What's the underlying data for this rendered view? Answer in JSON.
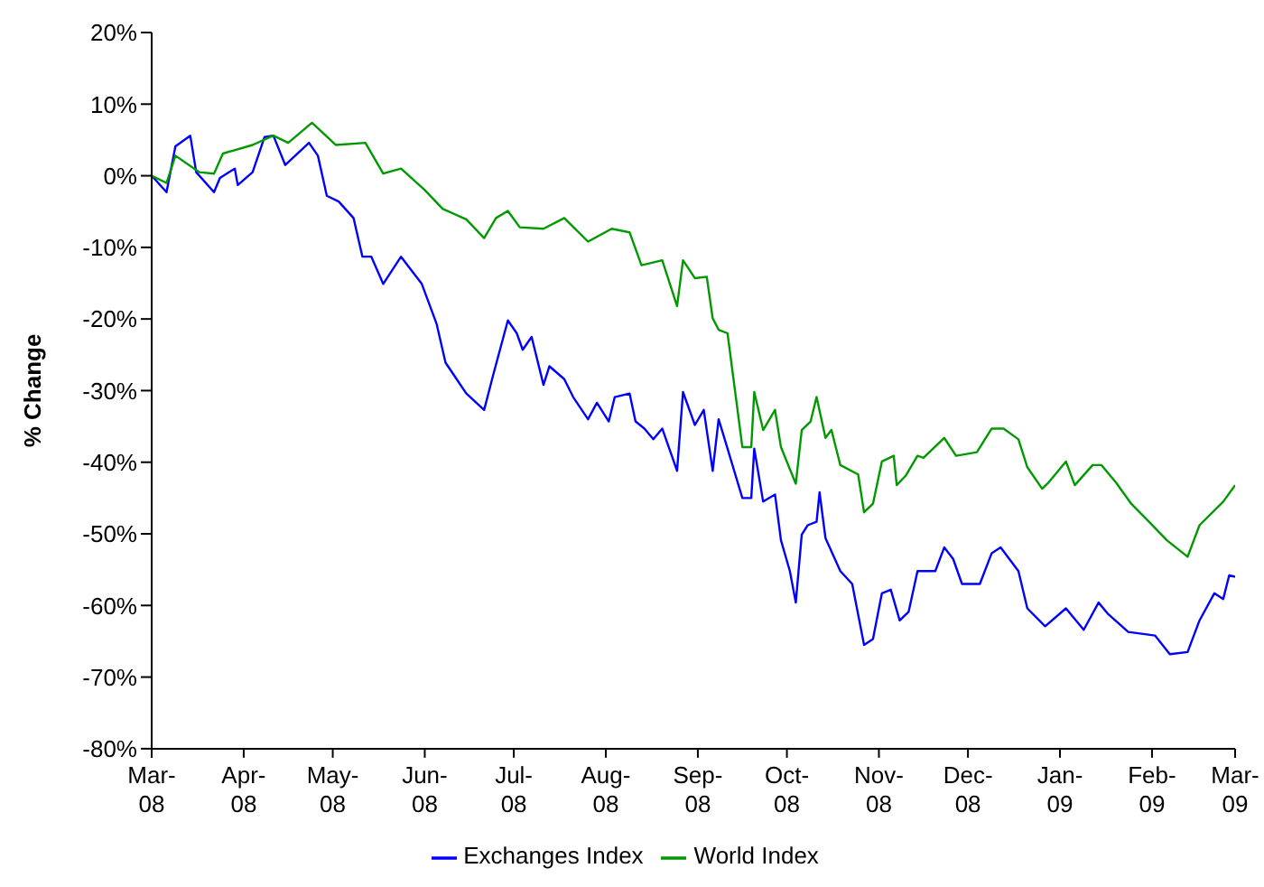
{
  "chart_data": {
    "type": "line",
    "ylabel": "% Change",
    "ylim": [
      -80,
      20
    ],
    "yticks": [
      {
        "value": 20,
        "label": "20%"
      },
      {
        "value": 10,
        "label": "10%"
      },
      {
        "value": 0,
        "label": "0%"
      },
      {
        "value": -10,
        "label": "-10%"
      },
      {
        "value": -20,
        "label": "-20%"
      },
      {
        "value": -30,
        "label": "-30%"
      },
      {
        "value": -40,
        "label": "-40%"
      },
      {
        "value": -50,
        "label": "-50%"
      },
      {
        "value": -60,
        "label": "-60%"
      },
      {
        "value": -70,
        "label": "-70%"
      },
      {
        "value": -80,
        "label": "-80%"
      }
    ],
    "xlim": [
      "2008-03-01",
      "2009-03-01"
    ],
    "xticks": [
      {
        "value": "2008-03-01",
        "label": "Mar-08"
      },
      {
        "value": "2008-04-01",
        "label": "Apr-08"
      },
      {
        "value": "2008-05-01",
        "label": "May-08"
      },
      {
        "value": "2008-06-01",
        "label": "Jun-08"
      },
      {
        "value": "2008-07-01",
        "label": "Jul-08"
      },
      {
        "value": "2008-08-01",
        "label": "Aug-08"
      },
      {
        "value": "2008-09-01",
        "label": "Sep-08"
      },
      {
        "value": "2008-10-01",
        "label": "Oct-08"
      },
      {
        "value": "2008-11-01",
        "label": "Nov-08"
      },
      {
        "value": "2008-12-01",
        "label": "Dec-08"
      },
      {
        "value": "2009-01-01",
        "label": "Jan-09"
      },
      {
        "value": "2009-02-01",
        "label": "Feb-09"
      },
      {
        "value": "2009-03-01",
        "label": "Mar-09"
      }
    ],
    "grid": false,
    "legend": "bottom",
    "marker": "none",
    "line_style": "solid",
    "series": [
      {
        "name": "Exchanges Index",
        "color": "#0000ff",
        "x": [
          "2008-03-01",
          "2008-03-06",
          "2008-03-09",
          "2008-03-14",
          "2008-03-16",
          "2008-03-22",
          "2008-03-24",
          "2008-03-29",
          "2008-03-30",
          "2008-04-04",
          "2008-04-08",
          "2008-04-11",
          "2008-04-15",
          "2008-04-23",
          "2008-04-26",
          "2008-04-29",
          "2008-05-03",
          "2008-05-08",
          "2008-05-11",
          "2008-05-14",
          "2008-05-18",
          "2008-05-24",
          "2008-05-31",
          "2008-06-05",
          "2008-06-08",
          "2008-06-15",
          "2008-06-21",
          "2008-06-24",
          "2008-06-29",
          "2008-07-02",
          "2008-07-04",
          "2008-07-07",
          "2008-07-11",
          "2008-07-13",
          "2008-07-18",
          "2008-07-21",
          "2008-07-26",
          "2008-07-29",
          "2008-08-02",
          "2008-08-04",
          "2008-08-09",
          "2008-08-11",
          "2008-08-14",
          "2008-08-17",
          "2008-08-20",
          "2008-08-25",
          "2008-08-27",
          "2008-08-31",
          "2008-09-03",
          "2008-09-06",
          "2008-09-08",
          "2008-09-11",
          "2008-09-16",
          "2008-09-19",
          "2008-09-20",
          "2008-09-23",
          "2008-09-27",
          "2008-09-29",
          "2008-10-02",
          "2008-10-04",
          "2008-10-06",
          "2008-10-08",
          "2008-10-11",
          "2008-10-12",
          "2008-10-14",
          "2008-10-19",
          "2008-10-23",
          "2008-10-27",
          "2008-10-30",
          "2008-11-02",
          "2008-11-05",
          "2008-11-08",
          "2008-11-11",
          "2008-11-14",
          "2008-11-20",
          "2008-11-23",
          "2008-11-26",
          "2008-11-29",
          "2008-12-05",
          "2008-12-09",
          "2008-12-12",
          "2008-12-18",
          "2008-12-21",
          "2008-12-27",
          "2009-01-03",
          "2009-01-09",
          "2009-01-14",
          "2009-01-17",
          "2009-01-24",
          "2009-02-02",
          "2009-02-07",
          "2009-02-13",
          "2009-02-17",
          "2009-02-22",
          "2009-02-25",
          "2009-02-27",
          "2009-03-01"
        ],
        "values": [
          0,
          -2.3,
          4.1,
          5.6,
          0.5,
          -2.3,
          -0.3,
          1.0,
          -1.3,
          0.5,
          5.4,
          5.6,
          1.5,
          4.6,
          2.8,
          -2.8,
          -3.6,
          -5.9,
          -11.3,
          -11.3,
          -15.1,
          -11.3,
          -15.1,
          -20.7,
          -26.1,
          -30.4,
          -32.7,
          -27.9,
          -20.2,
          -22.0,
          -24.3,
          -22.5,
          -29.2,
          -26.6,
          -28.4,
          -30.9,
          -34.0,
          -31.7,
          -34.3,
          -30.9,
          -30.4,
          -34.3,
          -35.3,
          -36.8,
          -35.3,
          -41.2,
          -30.2,
          -34.8,
          -32.7,
          -41.2,
          -34.0,
          -38.1,
          -45.0,
          -45.0,
          -38.1,
          -45.5,
          -44.5,
          -50.9,
          -55.2,
          -59.6,
          -50.1,
          -48.8,
          -48.3,
          -44.2,
          -50.6,
          -55.2,
          -57.0,
          -65.5,
          -64.7,
          -58.3,
          -57.8,
          -62.1,
          -60.9,
          -55.2,
          -55.2,
          -51.9,
          -53.5,
          -57.0,
          -57.0,
          -52.7,
          -51.9,
          -55.2,
          -60.4,
          -62.9,
          -60.4,
          -63.4,
          -59.6,
          -61.1,
          -63.7,
          -64.2,
          -66.8,
          -66.5,
          -62.1,
          -58.3,
          -59.1,
          -55.8,
          -56.0
        ]
      },
      {
        "name": "World Index",
        "color": "#009900",
        "x": [
          "2008-03-01",
          "2008-03-06",
          "2008-03-09",
          "2008-03-17",
          "2008-03-22",
          "2008-03-25",
          "2008-04-04",
          "2008-04-11",
          "2008-04-16",
          "2008-04-24",
          "2008-05-02",
          "2008-05-12",
          "2008-05-18",
          "2008-05-24",
          "2008-06-01",
          "2008-06-07",
          "2008-06-15",
          "2008-06-21",
          "2008-06-25",
          "2008-06-29",
          "2008-07-03",
          "2008-07-11",
          "2008-07-18",
          "2008-07-26",
          "2008-08-03",
          "2008-08-09",
          "2008-08-13",
          "2008-08-15",
          "2008-08-20",
          "2008-08-25",
          "2008-08-27",
          "2008-08-31",
          "2008-09-04",
          "2008-09-06",
          "2008-09-08",
          "2008-09-11",
          "2008-09-16",
          "2008-09-19",
          "2008-09-20",
          "2008-09-23",
          "2008-09-27",
          "2008-09-29",
          "2008-10-04",
          "2008-10-06",
          "2008-10-09",
          "2008-10-11",
          "2008-10-14",
          "2008-10-16",
          "2008-10-19",
          "2008-10-25",
          "2008-10-27",
          "2008-10-30",
          "2008-11-02",
          "2008-11-06",
          "2008-11-07",
          "2008-11-10",
          "2008-11-14",
          "2008-11-16",
          "2008-11-23",
          "2008-11-27",
          "2008-12-04",
          "2008-12-09",
          "2008-12-13",
          "2008-12-18",
          "2008-12-21",
          "2008-12-26",
          "2008-12-28",
          "2009-01-03",
          "2009-01-06",
          "2009-01-12",
          "2009-01-15",
          "2009-01-20",
          "2009-01-25",
          "2009-01-31",
          "2009-02-06",
          "2009-02-13",
          "2009-02-17",
          "2009-02-25",
          "2009-03-01"
        ],
        "values": [
          0,
          -1.0,
          2.8,
          0.5,
          0.3,
          3.1,
          4.3,
          5.6,
          4.6,
          7.4,
          4.3,
          4.6,
          0.3,
          1.0,
          -2.0,
          -4.6,
          -6.1,
          -8.7,
          -5.9,
          -4.9,
          -7.2,
          -7.4,
          -5.9,
          -9.2,
          -7.4,
          -7.9,
          -12.5,
          -12.3,
          -11.8,
          -18.2,
          -11.8,
          -14.3,
          -14.1,
          -19.9,
          -21.5,
          -22.0,
          -37.9,
          -37.9,
          -30.2,
          -35.5,
          -32.7,
          -37.9,
          -43.0,
          -35.5,
          -34.3,
          -30.9,
          -36.6,
          -35.5,
          -40.4,
          -41.7,
          -47.0,
          -45.8,
          -39.9,
          -39.1,
          -43.2,
          -41.9,
          -39.1,
          -39.4,
          -36.6,
          -39.1,
          -38.6,
          -35.3,
          -35.3,
          -36.8,
          -40.7,
          -43.7,
          -42.9,
          -39.9,
          -43.2,
          -40.4,
          -40.4,
          -42.9,
          -45.8,
          -48.3,
          -50.9,
          -53.2,
          -48.8,
          -45.5,
          -43.2
        ]
      }
    ]
  }
}
